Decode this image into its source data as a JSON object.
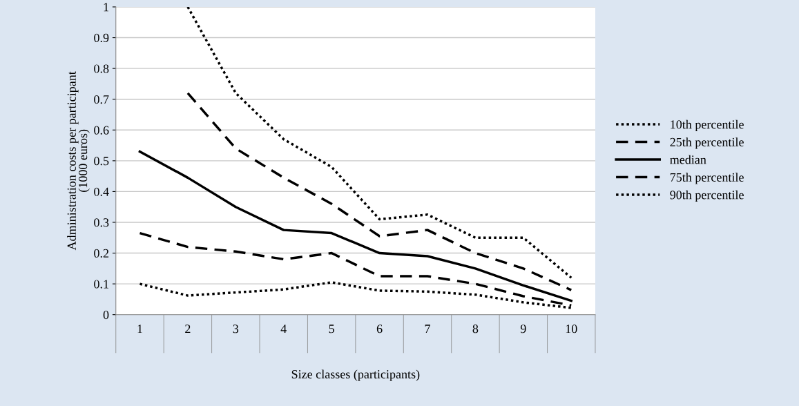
{
  "chart_data": {
    "type": "line",
    "xlabel": "Size classes (participants)",
    "ylabel": "Administration costs per participant\n(1000 euros)",
    "categories": [
      "1",
      "2",
      "3",
      "4",
      "5",
      "6",
      "7",
      "8",
      "9",
      "10"
    ],
    "series": [
      {
        "name": "10th percentile",
        "color": "#000000",
        "line_style": "dotted",
        "values": [
          0.1,
          0.062,
          0.072,
          0.082,
          0.105,
          0.078,
          0.075,
          0.065,
          0.04,
          0.022
        ]
      },
      {
        "name": "25th percentile",
        "color": "#000000",
        "line_style": "dashed",
        "values": [
          0.265,
          0.22,
          0.205,
          0.18,
          0.2,
          0.125,
          0.125,
          0.1,
          0.06,
          0.03
        ]
      },
      {
        "name": "median",
        "color": "#000000",
        "line_style": "solid",
        "values": [
          0.53,
          0.445,
          0.35,
          0.275,
          0.265,
          0.2,
          0.19,
          0.15,
          0.095,
          0.045
        ]
      },
      {
        "name": "75th percentile",
        "color": "#000000",
        "line_style": "dashed",
        "values": [
          null,
          0.72,
          0.54,
          0.445,
          0.36,
          0.255,
          0.275,
          0.2,
          0.15,
          0.08
        ]
      },
      {
        "name": "90th percentile",
        "color": "#000000",
        "line_style": "dotted",
        "values": [
          null,
          1.0,
          0.72,
          0.57,
          0.48,
          0.31,
          0.325,
          0.25,
          0.25,
          0.12
        ]
      }
    ],
    "ylim": [
      0,
      1
    ],
    "yticks": [
      0,
      0.1,
      0.2,
      0.3,
      0.4,
      0.5,
      0.6,
      0.7,
      0.8,
      0.9,
      1
    ],
    "grid": "y",
    "legend": "right",
    "marker": "none"
  }
}
